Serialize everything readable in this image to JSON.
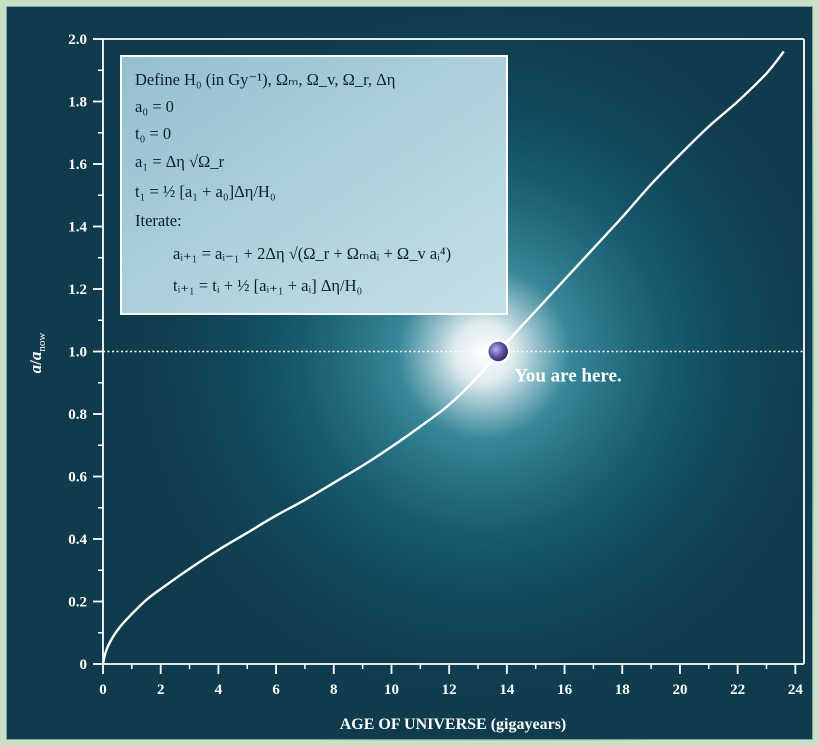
{
  "chart_data": {
    "type": "line",
    "xlabel": "AGE OF UNIVERSE (gigayears)",
    "ylabel": "a/a_now",
    "xlim": [
      0,
      24.3
    ],
    "ylim": [
      0,
      2.0
    ],
    "x_ticks": [
      "0",
      "2",
      "4",
      "6",
      "8",
      "10",
      "12",
      "14",
      "16",
      "18",
      "20",
      "22",
      "24"
    ],
    "y_ticks": [
      "0",
      "0.2",
      "0.4",
      "0.6",
      "0.8",
      "1.0",
      "1.2",
      "1.4",
      "1.6",
      "1.8",
      "2.0"
    ],
    "grid": false,
    "series": [
      {
        "x": [
          0,
          0.1,
          0.3,
          0.6,
          1,
          1.5,
          2,
          3,
          4,
          5,
          6,
          7,
          8,
          9,
          10,
          11,
          12,
          13,
          13.7,
          14,
          15,
          16,
          17,
          18,
          19,
          20,
          21,
          22,
          23,
          23.6
        ],
        "y": [
          0,
          0.04,
          0.08,
          0.12,
          0.16,
          0.205,
          0.24,
          0.305,
          0.365,
          0.42,
          0.475,
          0.525,
          0.58,
          0.635,
          0.695,
          0.76,
          0.83,
          0.92,
          1.0,
          1.03,
          1.13,
          1.23,
          1.33,
          1.43,
          1.535,
          1.63,
          1.72,
          1.8,
          1.89,
          1.96
        ]
      }
    ],
    "reference_line": {
      "y": 1.0
    },
    "annotations": [
      {
        "text": "You are here.",
        "x": 13.7,
        "y": 1.0
      }
    ]
  },
  "algorithm_box": {
    "lines": [
      "Define H₀ (in Gy⁻¹), Ωₘ, Ω_v, Ω_r, Δη",
      "a₀ = 0",
      "t₀ = 0",
      "a₁ = Δη √Ω_r",
      "t₁ = ½ [a₁ + a₀]Δη/H₀",
      "Iterate:",
      "aᵢ₊₁ = aᵢ₋₁ + 2Δη √(Ω_r + Ωₘaᵢ + Ω_v aᵢ⁴)",
      "tᵢ₊₁ = tᵢ + ½ [aᵢ₊₁ + aᵢ] Δη/H₀"
    ]
  },
  "colors": {
    "background": "#0f3b4c",
    "glow": "#ffffff",
    "curve": "#ffffff",
    "box_fill": "#a9cfdc",
    "marker": "#5a4a9c",
    "outer_border": "#c9dfc6"
  }
}
